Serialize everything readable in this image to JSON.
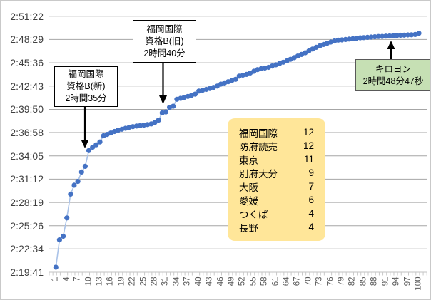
{
  "chart_data": {
    "type": "scatter",
    "title": "",
    "xlabel": "",
    "ylabel": "",
    "x_range": [
      1,
      100
    ],
    "x_tick_labels": [
      "1",
      "4",
      "7",
      "10",
      "13",
      "16",
      "19",
      "22",
      "25",
      "28",
      "31",
      "34",
      "37",
      "40",
      "43",
      "46",
      "49",
      "52",
      "55",
      "58",
      "61",
      "64",
      "67",
      "70",
      "73",
      "76",
      "79",
      "82",
      "85",
      "88",
      "91",
      "94",
      "97",
      "100"
    ],
    "y_tick_labels": [
      "2:51:22",
      "2:48:29",
      "2:45:36",
      "2:42:43",
      "2:39:50",
      "2:36:58",
      "2:34:05",
      "2:31:12",
      "2:28:19",
      "2:25:26",
      "2:22:34",
      "2:19:41"
    ],
    "ylim": [
      "2:19:41",
      "2:51:22"
    ],
    "grid": true,
    "values": [
      "2:20:18",
      "2:23:41",
      "2:24:08",
      "2:26:24",
      "2:29:21",
      "2:30:27",
      "2:30:55",
      "2:32:05",
      "2:32:47",
      "2:34:44",
      "2:35:09",
      "2:35:27",
      "2:35:48",
      "2:36:34",
      "2:36:44",
      "2:36:55",
      "2:37:06",
      "2:37:16",
      "2:37:23",
      "2:37:30",
      "2:37:37",
      "2:37:42",
      "2:37:46",
      "2:37:50",
      "2:37:53",
      "2:37:57",
      "2:38:02",
      "2:38:13",
      "2:38:30",
      "2:39:24",
      "2:39:31",
      "2:40:05",
      "2:40:13",
      "2:41:05",
      "2:41:12",
      "2:41:19",
      "2:41:26",
      "2:41:34",
      "2:41:43",
      "2:42:06",
      "2:42:12",
      "2:42:18",
      "2:42:25",
      "2:42:33",
      "2:42:43",
      "2:42:57",
      "2:43:06",
      "2:43:15",
      "2:43:25",
      "2:43:33",
      "2:43:57",
      "2:44:04",
      "2:44:10",
      "2:44:20",
      "2:44:33",
      "2:44:45",
      "2:44:52",
      "2:44:57",
      "2:45:02",
      "2:45:12",
      "2:45:21",
      "2:45:30",
      "2:45:40",
      "2:45:50",
      "2:46:02",
      "2:46:14",
      "2:46:26",
      "2:46:38",
      "2:46:50",
      "2:47:04",
      "2:47:18",
      "2:47:31",
      "2:47:42",
      "2:47:52",
      "2:48:01",
      "2:48:10",
      "2:48:18",
      "2:48:24",
      "2:48:26",
      "2:48:29",
      "2:48:32",
      "2:48:35",
      "2:48:38",
      "2:48:41",
      "2:48:43",
      "2:48:45",
      "2:48:47",
      "2:48:49",
      "2:48:51",
      "2:48:52",
      "2:48:54",
      "2:48:55",
      "2:48:57",
      "2:48:58",
      "2:49:00",
      "2:49:01",
      "2:49:03",
      "2:49:04",
      "2:49:06",
      "2:49:15"
    ],
    "marker_color": "#4472C4",
    "line_color": "#A9C2E8",
    "grid_color": "#A6A6A6",
    "axis_color": "#C0C0C0",
    "x_label_color": "#595959",
    "y_label_color": "#404040",
    "legend_position": "none"
  },
  "annotations": {
    "fukuoka_shin": {
      "lines": [
        "福岡国際",
        "資格B(新)",
        "2時間35分"
      ]
    },
    "fukuoka_kyu": {
      "lines": [
        "福岡国際",
        "資格B(旧)",
        "2時間40分"
      ]
    },
    "kiroyon": {
      "lines": [
        "キロヨン",
        "2時間48分47秒"
      ],
      "fill": "#C6E0B4"
    }
  },
  "race_counts": {
    "fill": "#FFE699",
    "rows": [
      {
        "name": "福岡国際",
        "count": "12"
      },
      {
        "name": "防府読売",
        "count": "12"
      },
      {
        "name": "東京",
        "count": "11"
      },
      {
        "name": "別府大分",
        "count": "9"
      },
      {
        "name": "大阪",
        "count": "7"
      },
      {
        "name": "愛媛",
        "count": "6"
      },
      {
        "name": "つくば",
        "count": "4"
      },
      {
        "name": "長野",
        "count": "4"
      }
    ]
  }
}
